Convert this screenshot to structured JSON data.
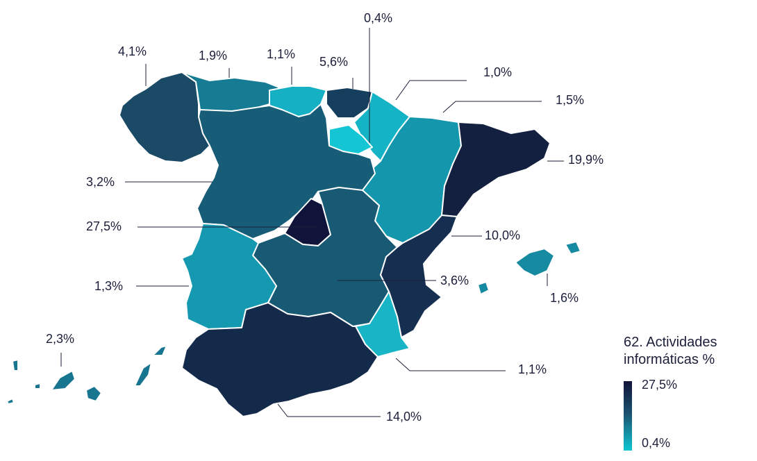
{
  "legend": {
    "title_line1": "62. Actividades",
    "title_line2": "informáticas %",
    "max_label": "27,5%",
    "min_label": "0,4%",
    "color_max": "#10143a",
    "color_mid": "#1b4f6d",
    "color_min": "#0ec6d3"
  },
  "regions": [
    {
      "id": "galicia",
      "value_label": "4,1%",
      "value": 4.1,
      "color": "#1b4a66"
    },
    {
      "id": "asturias",
      "value_label": "1,9%",
      "value": 1.9,
      "color": "#167c93"
    },
    {
      "id": "cantabria",
      "value_label": "1,1%",
      "value": 1.1,
      "color": "#15b0c3"
    },
    {
      "id": "pais-vasco",
      "value_label": "5,6%",
      "value": 5.6,
      "color": "#163f5e"
    },
    {
      "id": "la-rioja",
      "value_label": "0,4%",
      "value": 0.4,
      "color": "#14c5d3"
    },
    {
      "id": "navarra",
      "value_label": "1,0%",
      "value": 1.0,
      "color": "#14b3c6"
    },
    {
      "id": "aragon",
      "value_label": "1,5%",
      "value": 1.5,
      "color": "#1497ad"
    },
    {
      "id": "cataluna",
      "value_label": "19,9%",
      "value": 19.9,
      "color": "#14203f"
    },
    {
      "id": "castilla-y-leon",
      "value_label": "3,2%",
      "value": 3.2,
      "color": "#175d78"
    },
    {
      "id": "madrid",
      "value_label": "27,5%",
      "value": 27.5,
      "color": "#10143a"
    },
    {
      "id": "comunidad-valenciana",
      "value_label": "10,0%",
      "value": 10.0,
      "color": "#162f50"
    },
    {
      "id": "extremadura",
      "value_label": "1,3%",
      "value": 1.3,
      "color": "#1599b0"
    },
    {
      "id": "castilla-la-mancha",
      "value_label": "3,6%",
      "value": 3.6,
      "color": "#185a74"
    },
    {
      "id": "baleares",
      "value_label": "1,6%",
      "value": 1.6,
      "color": "#168aa0"
    },
    {
      "id": "canarias",
      "value_label": "2,3%",
      "value": 2.3,
      "color": "#177590"
    },
    {
      "id": "murcia",
      "value_label": "1,1%",
      "value": 1.1,
      "color": "#17b5c6"
    },
    {
      "id": "andalucia",
      "value_label": "14,0%",
      "value": 14.0,
      "color": "#142a4b"
    }
  ]
}
